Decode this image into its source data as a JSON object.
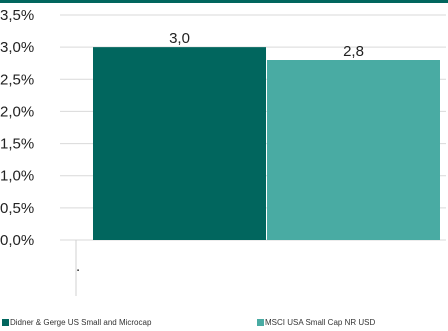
{
  "chart_data": {
    "type": "bar",
    "categories": [
      ""
    ],
    "series": [
      {
        "name": "Didner & Gerge US Small and Microcap",
        "values": [
          3.0
        ],
        "data_label": "3,0",
        "color": "#01665e"
      },
      {
        "name": "MSCI USA Small Cap NR USD",
        "values": [
          2.8
        ],
        "data_label": "2,8",
        "color": "#49aba3"
      }
    ],
    "yticks": [
      "0,0%",
      "0,5%",
      "1,0%",
      "1,5%",
      "2,0%",
      "2,5%",
      "3,0%",
      "3,5%"
    ],
    "ylim": [
      0,
      3.5
    ],
    "grid": true,
    "legend_position": "bottom",
    "x_tick_mark": "."
  }
}
